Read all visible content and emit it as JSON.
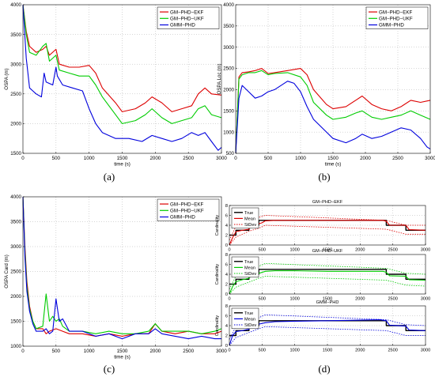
{
  "captions": [
    "(a)",
    "(b)",
    "(c)",
    "(d)"
  ],
  "colors": {
    "ekf": "#dd0000",
    "ukf": "#00cc00",
    "gmm": "#0000dd",
    "true": "#000000"
  },
  "chart_data": [
    {
      "type": "line",
      "panel": "a",
      "title": "",
      "xlabel": "time (s)",
      "ylabel": "OSPA (m)",
      "xlim": [
        0,
        3000
      ],
      "ylim": [
        1500,
        4000
      ],
      "xticks": [
        0,
        500,
        1000,
        1500,
        2000,
        2500,
        3000
      ],
      "yticks": [
        1500,
        2000,
        2500,
        3000,
        3500,
        4000
      ],
      "legend": "top-right",
      "grid": true,
      "series": [
        {
          "name": "GM−PHD−EKF",
          "color": "#dd0000",
          "x": [
            0,
            50,
            100,
            200,
            300,
            350,
            400,
            500,
            550,
            700,
            850,
            1000,
            1100,
            1200,
            1400,
            1500,
            1700,
            1850,
            1950,
            2100,
            2250,
            2400,
            2550,
            2650,
            2750,
            2850,
            3000
          ],
          "y": [
            4000,
            3550,
            3300,
            3200,
            3250,
            3300,
            3150,
            3250,
            3000,
            2950,
            2950,
            2980,
            2850,
            2600,
            2350,
            2200,
            2250,
            2350,
            2450,
            2350,
            2200,
            2250,
            2300,
            2500,
            2600,
            2500,
            2480
          ]
        },
        {
          "name": "GM−PHD−UKF",
          "color": "#00cc00",
          "x": [
            0,
            50,
            100,
            200,
            300,
            350,
            400,
            500,
            550,
            700,
            850,
            1000,
            1100,
            1200,
            1400,
            1500,
            1700,
            1850,
            1950,
            2100,
            2250,
            2400,
            2550,
            2650,
            2750,
            2850,
            3000
          ],
          "y": [
            4000,
            3500,
            3200,
            3150,
            3300,
            3350,
            3050,
            3150,
            2900,
            2850,
            2800,
            2800,
            2650,
            2450,
            2150,
            2000,
            2050,
            2150,
            2250,
            2100,
            2000,
            2050,
            2100,
            2250,
            2300,
            2150,
            2100
          ]
        },
        {
          "name": "GMM−PHD",
          "color": "#0000dd",
          "x": [
            0,
            50,
            100,
            150,
            200,
            280,
            320,
            350,
            450,
            500,
            520,
            600,
            750,
            900,
            1000,
            1100,
            1200,
            1400,
            1600,
            1800,
            1950,
            2100,
            2250,
            2400,
            2550,
            2650,
            2750,
            2850,
            2950,
            3000
          ],
          "y": [
            4000,
            3100,
            2600,
            2550,
            2500,
            2450,
            2850,
            2700,
            2650,
            2950,
            2800,
            2650,
            2600,
            2550,
            2250,
            2000,
            1850,
            1750,
            1750,
            1700,
            1800,
            1750,
            1700,
            1750,
            1850,
            1800,
            1850,
            1700,
            1550,
            1600
          ]
        }
      ]
    },
    {
      "type": "line",
      "panel": "b",
      "title": "",
      "xlabel": "time (s)",
      "ylabel": "OSPA Loc (m)",
      "xlim": [
        0,
        3000
      ],
      "ylim": [
        500,
        4000
      ],
      "xticks": [
        0,
        500,
        1000,
        1500,
        2000,
        2500,
        3000
      ],
      "yticks": [
        500,
        1000,
        1500,
        2000,
        2500,
        3000,
        3500,
        4000
      ],
      "legend": "top-right",
      "grid": true,
      "series": [
        {
          "name": "GM−PHD−EKF",
          "color": "#dd0000",
          "x": [
            0,
            50,
            100,
            200,
            300,
            400,
            500,
            600,
            800,
            1000,
            1100,
            1200,
            1400,
            1500,
            1700,
            1850,
            1950,
            2100,
            2250,
            2400,
            2550,
            2700,
            2850,
            3000
          ],
          "y": [
            500,
            2300,
            2400,
            2420,
            2450,
            2500,
            2380,
            2400,
            2450,
            2500,
            2350,
            2000,
            1650,
            1550,
            1600,
            1750,
            1850,
            1650,
            1550,
            1500,
            1600,
            1750,
            1700,
            1750
          ]
        },
        {
          "name": "GM−PHD−UKF",
          "color": "#00cc00",
          "x": [
            0,
            50,
            100,
            200,
            300,
            400,
            500,
            600,
            800,
            1000,
            1100,
            1200,
            1400,
            1500,
            1700,
            1850,
            1950,
            2100,
            2250,
            2400,
            2550,
            2700,
            2850,
            3000
          ],
          "y": [
            500,
            2250,
            2350,
            2400,
            2400,
            2450,
            2350,
            2380,
            2400,
            2300,
            2100,
            1700,
            1400,
            1300,
            1350,
            1450,
            1500,
            1350,
            1300,
            1350,
            1400,
            1500,
            1400,
            1300
          ]
        },
        {
          "name": "GMM−PHD",
          "color": "#0000dd",
          "x": [
            0,
            50,
            100,
            200,
            300,
            400,
            500,
            600,
            800,
            900,
            1000,
            1100,
            1200,
            1400,
            1500,
            1700,
            1850,
            1950,
            2100,
            2250,
            2400,
            2550,
            2700,
            2850,
            2950,
            3000
          ],
          "y": [
            500,
            1800,
            2100,
            1950,
            1800,
            1850,
            1950,
            2000,
            2200,
            2150,
            1950,
            1600,
            1300,
            1000,
            850,
            750,
            850,
            950,
            850,
            900,
            1000,
            1100,
            1050,
            850,
            650,
            600
          ]
        }
      ]
    },
    {
      "type": "line",
      "panel": "c",
      "title": "",
      "xlabel": "time (s)",
      "ylabel": "OSPA Card (m)",
      "xlim": [
        0,
        3000
      ],
      "ylim": [
        1000,
        4000
      ],
      "xticks": [
        0,
        500,
        1000,
        1500,
        2000,
        2500,
        3000
      ],
      "yticks": [
        1000,
        1500,
        2000,
        2500,
        3000,
        3500,
        4000
      ],
      "legend": "top-right",
      "grid": true,
      "series": [
        {
          "name": "GM−PHD−EKF",
          "color": "#dd0000",
          "x": [
            0,
            30,
            60,
            100,
            150,
            200,
            300,
            350,
            400,
            500,
            600,
            700,
            900,
            1100,
            1300,
            1500,
            1700,
            1900,
            2000,
            2100,
            2300,
            2500,
            2700,
            2900,
            3000
          ],
          "y": [
            4000,
            3000,
            2300,
            1800,
            1500,
            1350,
            1350,
            1250,
            1300,
            1350,
            1300,
            1250,
            1250,
            1200,
            1250,
            1200,
            1250,
            1250,
            1450,
            1300,
            1250,
            1300,
            1250,
            1250,
            1300
          ]
        },
        {
          "name": "GM−PHD−UKF",
          "color": "#00cc00",
          "x": [
            0,
            30,
            60,
            100,
            150,
            200,
            300,
            350,
            400,
            450,
            500,
            550,
            600,
            700,
            900,
            1100,
            1300,
            1500,
            1700,
            1900,
            2000,
            2100,
            2300,
            2500,
            2700,
            2900,
            3000
          ],
          "y": [
            4000,
            2900,
            2200,
            1750,
            1500,
            1350,
            1400,
            2050,
            1500,
            1600,
            1500,
            1550,
            1400,
            1300,
            1300,
            1250,
            1300,
            1250,
            1250,
            1300,
            1450,
            1300,
            1300,
            1300,
            1250,
            1300,
            1350
          ]
        },
        {
          "name": "GMM−PHD",
          "color": "#0000dd",
          "x": [
            0,
            30,
            60,
            100,
            150,
            200,
            300,
            350,
            400,
            450,
            500,
            550,
            600,
            700,
            900,
            1100,
            1300,
            1500,
            1700,
            1900,
            2000,
            2100,
            2300,
            2500,
            2700,
            2900,
            3000
          ],
          "y": [
            4000,
            2800,
            2100,
            1700,
            1450,
            1300,
            1300,
            1350,
            1250,
            1300,
            1950,
            1500,
            1550,
            1300,
            1300,
            1200,
            1250,
            1150,
            1250,
            1250,
            1350,
            1250,
            1200,
            1150,
            1200,
            1150,
            1150
          ]
        }
      ]
    },
    {
      "type": "line",
      "panel": "d1",
      "title": "GM−PHD−EKF",
      "xlabel": "",
      "ylabel": "Cardinality",
      "xlim": [
        0,
        3000
      ],
      "ylim": [
        0,
        8
      ],
      "xticks": [
        0,
        500,
        1000,
        1500,
        2000,
        2500,
        3000
      ],
      "yticks": [
        0,
        2,
        4,
        6,
        8
      ],
      "legend": "top-left",
      "grid": true,
      "series": [
        {
          "name": "True",
          "color": "#000000",
          "step": true,
          "x": [
            0,
            100,
            300,
            450,
            550,
            2400,
            2700,
            3000
          ],
          "y": [
            2,
            3,
            4,
            5,
            5,
            4,
            3,
            3
          ]
        },
        {
          "name": "Mean",
          "color": "#dd0000",
          "x": [
            0,
            50,
            100,
            200,
            300,
            350,
            450,
            500,
            550,
            700,
            1000,
            1500,
            2000,
            2350,
            2400,
            2450,
            2700,
            2750,
            3000
          ],
          "y": [
            0,
            1.5,
            2.7,
            3.0,
            3.2,
            4.0,
            4.3,
            4.5,
            4.9,
            5.0,
            5.0,
            5.0,
            5.0,
            5.0,
            4.8,
            4.0,
            4.0,
            3.1,
            3.0
          ]
        },
        {
          "name": "StDev",
          "color": "#dd0000",
          "dashed": true,
          "x": [
            0,
            100,
            300,
            450,
            550,
            2400,
            2700,
            3000
          ],
          "y": [
            1.0,
            3.8,
            4.8,
            5.6,
            6.0,
            5.0,
            4.0,
            4.0
          ]
        },
        {
          "name": "",
          "color": "#dd0000",
          "dashed": true,
          "x": [
            0,
            100,
            300,
            450,
            550,
            2400,
            2700,
            3000
          ],
          "y": [
            0,
            1.6,
            2.8,
            3.4,
            4.0,
            3.2,
            2.2,
            2.2
          ]
        }
      ]
    },
    {
      "type": "line",
      "panel": "d2",
      "title": "GM−PHD−UKF",
      "xlabel": "",
      "ylabel": "Cardinality",
      "xlim": [
        0,
        3000
      ],
      "ylim": [
        0,
        8
      ],
      "xticks": [
        0,
        500,
        1000,
        1500,
        2000,
        2500,
        3000
      ],
      "yticks": [
        0,
        2,
        4,
        6,
        8
      ],
      "legend": "top-left",
      "grid": true,
      "series": [
        {
          "name": "True",
          "color": "#000000",
          "step": true,
          "x": [
            0,
            100,
            300,
            450,
            550,
            2400,
            2700,
            3000
          ],
          "y": [
            2,
            3,
            4,
            5,
            5,
            4,
            3,
            3
          ]
        },
        {
          "name": "Mean",
          "color": "#00cc00",
          "x": [
            0,
            50,
            100,
            200,
            300,
            350,
            450,
            550,
            700,
            1000,
            1500,
            2000,
            2350,
            2400,
            2450,
            2700,
            2750,
            3000
          ],
          "y": [
            0,
            1.5,
            2.5,
            2.9,
            3.2,
            3.8,
            4.2,
            4.6,
            4.7,
            4.7,
            4.6,
            4.6,
            4.6,
            4.4,
            3.7,
            3.6,
            2.9,
            2.8
          ]
        },
        {
          "name": "StDev",
          "color": "#00cc00",
          "dashed": true,
          "x": [
            0,
            100,
            300,
            450,
            550,
            2400,
            2700,
            3000
          ],
          "y": [
            1.0,
            3.6,
            4.6,
            5.6,
            6.2,
            5.2,
            4.2,
            4.0
          ]
        },
        {
          "name": "",
          "color": "#00cc00",
          "dashed": true,
          "x": [
            0,
            100,
            300,
            450,
            550,
            2400,
            2700,
            3000
          ],
          "y": [
            0,
            1.4,
            2.4,
            3.2,
            3.6,
            2.8,
            1.8,
            1.6
          ]
        }
      ]
    },
    {
      "type": "line",
      "panel": "d3",
      "title": "GMM−PHD",
      "xlabel": "",
      "ylabel": "Cardinality",
      "xlim": [
        0,
        3000
      ],
      "ylim": [
        0,
        8
      ],
      "xticks": [
        0,
        500,
        1000,
        1500,
        2000,
        2500,
        3000
      ],
      "yticks": [
        0,
        2,
        4,
        6,
        8
      ],
      "legend": "top-left",
      "grid": true,
      "series": [
        {
          "name": "True",
          "color": "#000000",
          "step": true,
          "x": [
            0,
            100,
            300,
            450,
            550,
            2400,
            2700,
            3000
          ],
          "y": [
            2,
            3,
            4,
            5,
            5,
            4,
            3,
            3
          ]
        },
        {
          "name": "Mean",
          "color": "#0000dd",
          "x": [
            0,
            50,
            100,
            200,
            300,
            350,
            450,
            550,
            700,
            1000,
            1500,
            2000,
            2300,
            2400,
            2450,
            2700,
            2750,
            3000
          ],
          "y": [
            0,
            2.0,
            2.8,
            3.0,
            3.3,
            3.9,
            4.3,
            4.6,
            4.8,
            4.9,
            5.0,
            5.1,
            5.2,
            5.0,
            4.1,
            3.9,
            3.1,
            3.0
          ]
        },
        {
          "name": "StDev",
          "color": "#0000dd",
          "dashed": true,
          "x": [
            0,
            100,
            300,
            450,
            550,
            2400,
            2700,
            3000
          ],
          "y": [
            1.2,
            3.8,
            4.8,
            5.6,
            6.2,
            5.2,
            4.2,
            4.0
          ]
        },
        {
          "name": "",
          "color": "#0000dd",
          "dashed": true,
          "x": [
            0,
            100,
            300,
            450,
            550,
            2400,
            2700,
            3000
          ],
          "y": [
            0,
            1.6,
            2.6,
            3.4,
            3.8,
            3.0,
            2.0,
            2.0
          ]
        }
      ]
    }
  ]
}
